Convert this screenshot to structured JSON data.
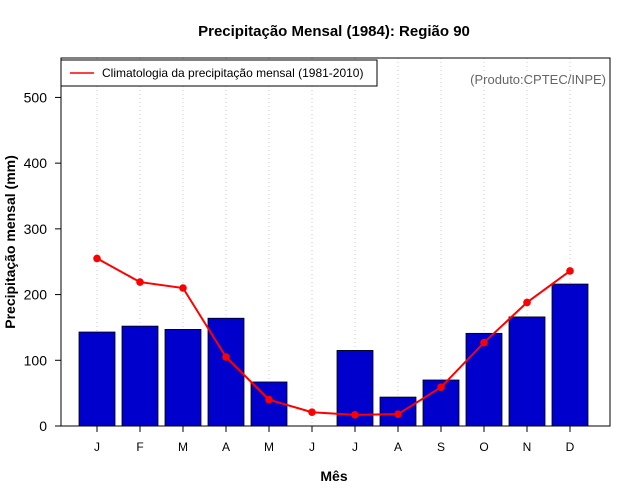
{
  "chart_data": {
    "type": "bar",
    "title": "Precipitação Mensal (1984): Região 90",
    "xlabel": "Mês",
    "ylabel": "Precipitação mensal (mm)",
    "ylim": [
      0,
      560
    ],
    "yticks": [
      0,
      100,
      200,
      300,
      400,
      500
    ],
    "categories": [
      "J",
      "F",
      "M",
      "A",
      "M",
      "J",
      "J",
      "A",
      "S",
      "O",
      "N",
      "D"
    ],
    "series": [
      {
        "name": "Precipitação mensal (1984)",
        "kind": "bar",
        "color": "#0000CC",
        "values": [
          143,
          152,
          147,
          164,
          67,
          0,
          115,
          44,
          70,
          141,
          166,
          216
        ]
      },
      {
        "name": "Climatologia da precipitação mensal (1981-2010)",
        "kind": "line",
        "color": "#FF0000",
        "values": [
          255,
          219,
          210,
          105,
          40,
          21,
          17,
          18,
          59,
          127,
          188,
          236
        ]
      }
    ],
    "legend": {
      "position": "top-left",
      "entries": [
        "Climatologia da precipitação mensal (1981-2010)"
      ]
    },
    "annotation": "(Produto:CPTEC/INPE)",
    "grid": "vertical-dotted"
  }
}
